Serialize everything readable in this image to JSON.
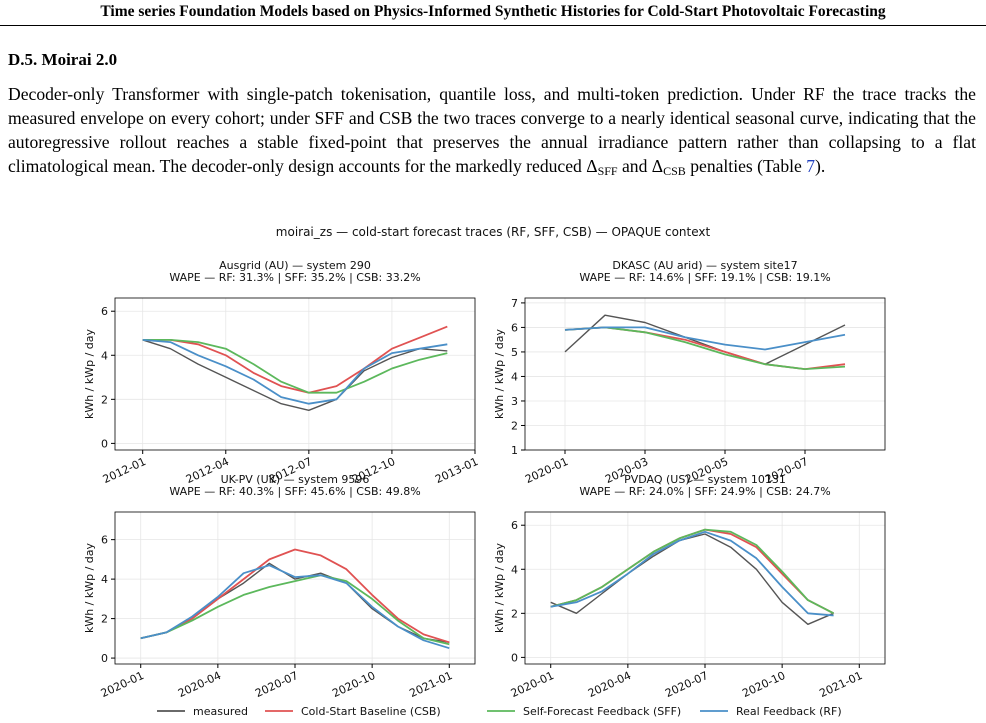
{
  "header": {
    "title": "Time series Foundation Models based on Physics-Informed Synthetic Histories for Cold-Start Photovoltaic Forecasting"
  },
  "section": {
    "heading": "D.5. Moirai 2.0",
    "paragraph": [
      "Decoder-only Transformer with single-patch tokenisation, quantile loss, and multi-token prediction. Under RF the trace tracks the measured envelope on every cohort; under SFF and CSB the two traces converge to a nearly identical seasonal curve, indicating that the autoregressive rollout reaches a stable fixed-point that preserves the annual irradiance pattern rather than collapsing to a flat climatological mean. The decoder-only design accounts for the markedly reduced ",
      "Δ",
      "SFF",
      " and ",
      "Δ",
      "CSB",
      " penalties (Table ",
      "7",
      ")."
    ]
  },
  "figure": {
    "title": "moirai_zs — cold-start forecast traces (RF, SFF, CSB) — OPAQUE context"
  },
  "chart_data": [
    {
      "type": "line",
      "title": "Ausgrid (AU) — system 290",
      "subtitle": "WAPE — RF: 31.3% | SFF: 35.2% | CSB: 33.2%",
      "y_label": "kWh / kWp / day",
      "x": [
        "2012-01",
        "2012-02",
        "2012-03",
        "2012-04",
        "2012-05",
        "2012-06",
        "2012-07",
        "2012-08",
        "2012-09",
        "2012-10",
        "2012-11",
        "2012-12"
      ],
      "series": [
        {
          "name": "measured",
          "color": "#555555",
          "values": [
            4.7,
            4.3,
            3.6,
            3.0,
            2.4,
            1.8,
            1.5,
            2.0,
            3.3,
            3.9,
            4.3,
            4.2
          ]
        },
        {
          "name": "Cold-Start Baseline (CSB)",
          "color": "#e05252",
          "values": [
            4.7,
            4.7,
            4.5,
            4.0,
            3.2,
            2.6,
            2.3,
            2.6,
            3.4,
            4.3,
            4.8,
            5.3
          ]
        },
        {
          "name": "Self-Forecast Feedback (SFF)",
          "color": "#5cb85c",
          "values": [
            4.7,
            4.7,
            4.6,
            4.3,
            3.6,
            2.8,
            2.3,
            2.3,
            2.8,
            3.4,
            3.8,
            4.1
          ]
        },
        {
          "name": "Real Feedback (RF)",
          "color": "#4a8fc8",
          "values": [
            4.7,
            4.6,
            4.0,
            3.5,
            2.9,
            2.1,
            1.8,
            2.0,
            3.4,
            4.1,
            4.3,
            4.5
          ]
        }
      ],
      "xlim": [
        "2011-12",
        "2013-01"
      ],
      "xticks": [
        "2012-01",
        "2012-04",
        "2012-07",
        "2012-10",
        "2013-01"
      ],
      "ylim": [
        -0.3,
        6.6
      ],
      "yticks": [
        0,
        2,
        4,
        6
      ],
      "grid": true
    },
    {
      "type": "line",
      "title": "DKASC (AU arid) — system site17",
      "subtitle": "WAPE — RF: 14.6% | SFF: 19.1% | CSB: 19.1%",
      "y_label": "kWh / kWp / day",
      "x": [
        "2020-01",
        "2020-02",
        "2020-03",
        "2020-04",
        "2020-05",
        "2020-06",
        "2020-07",
        "2020-08"
      ],
      "series": [
        {
          "values": [
            5.0,
            6.5,
            6.2,
            5.6,
            5.0,
            4.5,
            5.3,
            6.1
          ]
        },
        {
          "values": [
            5.9,
            6.0,
            5.8,
            5.5,
            5.0,
            4.5,
            4.3,
            4.5
          ]
        },
        {
          "values": [
            5.9,
            6.0,
            5.8,
            5.4,
            4.9,
            4.5,
            4.3,
            4.4
          ]
        },
        {
          "values": [
            5.9,
            6.0,
            6.0,
            5.6,
            5.3,
            5.1,
            5.4,
            5.7
          ]
        }
      ],
      "xlim": [
        "2019-12",
        "2020-09"
      ],
      "xticks": [
        "2020-01",
        "2020-03",
        "2020-05",
        "2020-07"
      ],
      "ylim": [
        1,
        7.2
      ],
      "yticks": [
        1,
        2,
        3,
        4,
        5,
        6,
        7
      ],
      "grid": true
    },
    {
      "type": "line",
      "title": "UK-PV (UK) — system 9596",
      "subtitle": "WAPE — RF: 40.3% | SFF: 45.6% | CSB: 49.8%",
      "y_label": "kWh / kWp / day",
      "x": [
        "2020-01",
        "2020-02",
        "2020-03",
        "2020-04",
        "2020-05",
        "2020-06",
        "2020-07",
        "2020-08",
        "2020-09",
        "2020-10",
        "2020-11",
        "2020-12",
        "2021-01"
      ],
      "series": [
        {
          "values": [
            1.0,
            1.3,
            2.0,
            3.0,
            3.8,
            4.8,
            4.0,
            4.3,
            3.8,
            2.5,
            1.6,
            1.0,
            0.8
          ]
        },
        {
          "values": [
            1.0,
            1.3,
            2.0,
            3.0,
            4.0,
            5.0,
            5.5,
            5.2,
            4.5,
            3.2,
            2.0,
            1.2,
            0.8
          ]
        },
        {
          "values": [
            1.0,
            1.3,
            1.9,
            2.6,
            3.2,
            3.6,
            3.9,
            4.2,
            3.9,
            3.0,
            1.9,
            1.0,
            0.7
          ]
        },
        {
          "values": [
            1.0,
            1.3,
            2.1,
            3.1,
            4.3,
            4.7,
            4.1,
            4.2,
            3.8,
            2.6,
            1.6,
            0.9,
            0.5
          ]
        }
      ],
      "xlim": [
        "2019-12",
        "2021-02"
      ],
      "xticks": [
        "2020-01",
        "2020-04",
        "2020-07",
        "2020-10",
        "2021-01"
      ],
      "ylim": [
        -0.3,
        7.4
      ],
      "yticks": [
        0,
        2,
        4,
        6
      ],
      "grid": true
    },
    {
      "type": "line",
      "title": "PVDAQ (US) — system 10131",
      "subtitle": "WAPE — RF: 24.0% | SFF: 24.9% | CSB: 24.7%",
      "y_label": "kWh / kWp / day",
      "x": [
        "2020-01",
        "2020-02",
        "2020-03",
        "2020-04",
        "2020-05",
        "2020-06",
        "2020-07",
        "2020-08",
        "2020-09",
        "2020-10",
        "2020-11",
        "2020-12"
      ],
      "series": [
        {
          "values": [
            2.5,
            2.0,
            2.9,
            3.8,
            4.6,
            5.3,
            5.6,
            5.0,
            4.0,
            2.5,
            1.5,
            2.0
          ]
        },
        {
          "values": [
            2.3,
            2.6,
            3.2,
            4.0,
            4.8,
            5.4,
            5.8,
            5.6,
            5.0,
            3.8,
            2.6,
            2.0
          ]
        },
        {
          "values": [
            2.3,
            2.6,
            3.2,
            4.0,
            4.8,
            5.4,
            5.8,
            5.7,
            5.1,
            3.9,
            2.6,
            2.0
          ]
        },
        {
          "values": [
            2.3,
            2.5,
            3.0,
            3.8,
            4.7,
            5.3,
            5.7,
            5.3,
            4.5,
            3.2,
            2.0,
            1.9
          ]
        }
      ],
      "xlim": [
        "2019-12",
        "2021-02"
      ],
      "xticks": [
        "2020-01",
        "2020-04",
        "2020-07",
        "2020-10",
        "2021-01"
      ],
      "ylim": [
        -0.3,
        6.6
      ],
      "yticks": [
        0,
        2,
        4,
        6
      ],
      "grid": true
    }
  ]
}
